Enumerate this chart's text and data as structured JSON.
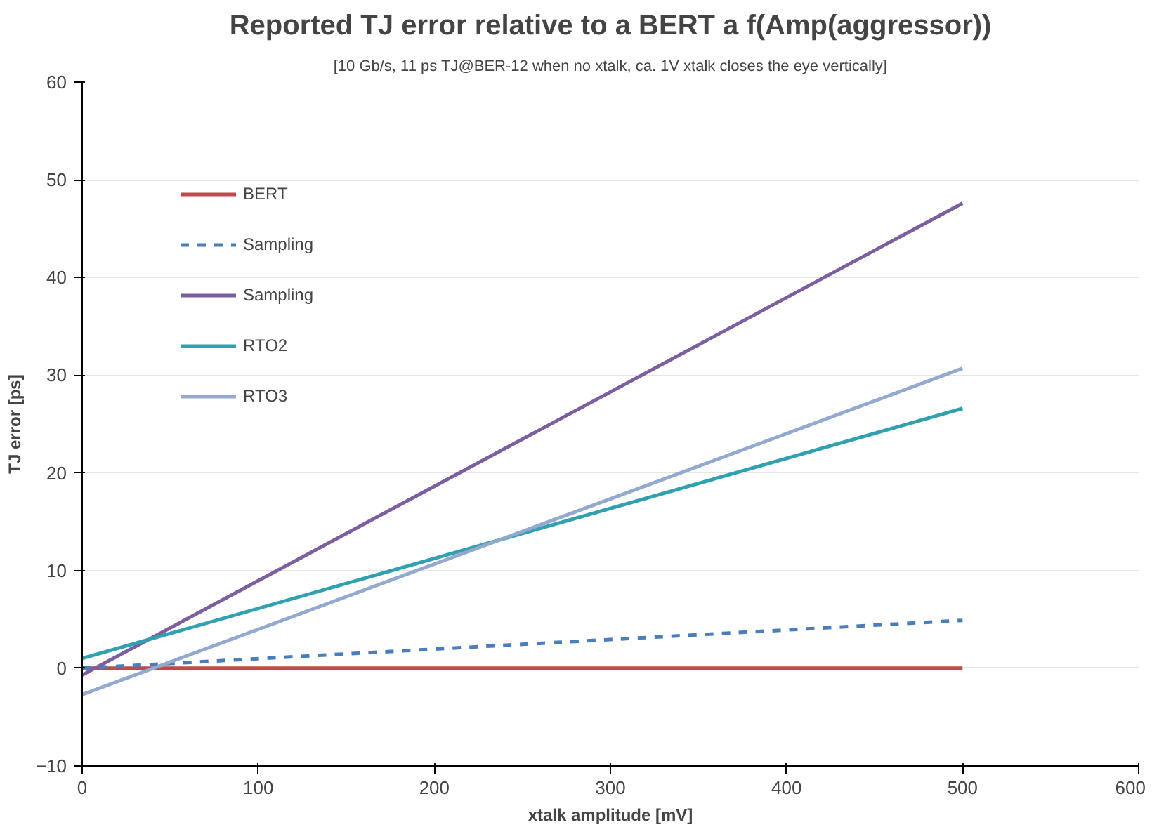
{
  "chart_data": {
    "type": "line",
    "title": "Reported TJ error relative to a BERT a f(Amp(aggressor))",
    "subtitle": "[10 Gb/s, 11 ps TJ@BER-12 when no xtalk, ca. 1V xtalk closes the eye vertically]",
    "xlabel": "xtalk amplitude [mV]",
    "ylabel": "TJ error [ps]",
    "x": [
      0,
      500
    ],
    "series": [
      {
        "name": "BERT",
        "color": "#be4b48",
        "values": [
          0,
          0
        ]
      },
      {
        "name": "Sampling",
        "color": "#4a7ebb",
        "values": [
          0,
          4.9
        ],
        "line_style": "dashed"
      },
      {
        "name": "Sampling",
        "color": "#7d5fa0",
        "values": [
          -0.7,
          47.6
        ]
      },
      {
        "name": "RTO2",
        "color": "#31a0b0",
        "values": [
          1,
          26.6
        ]
      },
      {
        "name": "RTO3",
        "color": "#93a9cf",
        "values": [
          -2.7,
          30.7
        ]
      }
    ],
    "xlim": [
      0,
      600
    ],
    "xticks": [
      0,
      100,
      200,
      300,
      400,
      500,
      600
    ],
    "ylim": [
      -10,
      60
    ],
    "yticks": [
      -10,
      0,
      10,
      20,
      30,
      40,
      50,
      60
    ],
    "grid": "y",
    "legend": "top left",
    "marker": "none",
    "line_style": "solid"
  }
}
